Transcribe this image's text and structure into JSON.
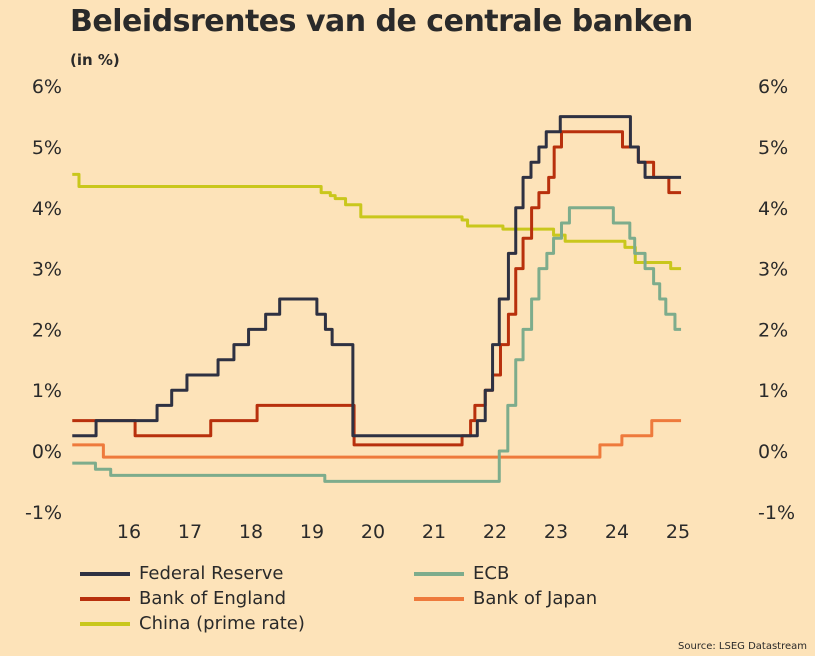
{
  "title": "Beleidsrentes van de centrale banken",
  "unit": "(in %)",
  "source": "Source: LSEG Datastream",
  "chart_data": {
    "type": "line",
    "title": "Beleidsrentes van de centrale banken",
    "ylabel": "(in %)",
    "ylim": [
      -1,
      6
    ],
    "xlim": [
      2015.57,
      2026.6
    ],
    "yticks": [
      {
        "v": 6,
        "label": "6%"
      },
      {
        "v": 5,
        "label": "5%"
      },
      {
        "v": 4,
        "label": "4%"
      },
      {
        "v": 3,
        "label": "3%"
      },
      {
        "v": 2,
        "label": "2%"
      },
      {
        "v": 1,
        "label": "1%"
      },
      {
        "v": 0,
        "label": "0%"
      },
      {
        "v": -1,
        "label": "-1%"
      }
    ],
    "xticks": [
      {
        "v": 2016.5,
        "label": "16"
      },
      {
        "v": 2017.5,
        "label": "17"
      },
      {
        "v": 2018.5,
        "label": "18"
      },
      {
        "v": 2019.5,
        "label": "19"
      },
      {
        "v": 2020.5,
        "label": "20"
      },
      {
        "v": 2021.5,
        "label": "21"
      },
      {
        "v": 2022.5,
        "label": "22"
      },
      {
        "v": 2023.5,
        "label": "23"
      },
      {
        "v": 2024.5,
        "label": "24"
      },
      {
        "v": 2025.5,
        "label": "25"
      }
    ],
    "end": 2025.55,
    "series": [
      {
        "name": "China (prime rate)",
        "color": "#c9c71c",
        "steps": [
          [
            2015.57,
            4.55
          ],
          [
            2015.68,
            4.35
          ],
          [
            2019.65,
            4.25
          ],
          [
            2019.8,
            4.2
          ],
          [
            2019.88,
            4.15
          ],
          [
            2020.05,
            4.05
          ],
          [
            2020.3,
            3.85
          ],
          [
            2021.96,
            3.8
          ],
          [
            2022.05,
            3.7
          ],
          [
            2022.63,
            3.65
          ],
          [
            2023.46,
            3.55
          ],
          [
            2023.65,
            3.45
          ],
          [
            2024.63,
            3.35
          ],
          [
            2024.8,
            3.1
          ],
          [
            2025.38,
            3.0
          ]
        ]
      },
      {
        "name": "Bank of Japan",
        "color": "#ee7a3c",
        "steps": [
          [
            2015.57,
            0.1
          ],
          [
            2016.08,
            -0.1
          ],
          [
            2024.22,
            0.1
          ],
          [
            2024.58,
            0.25
          ],
          [
            2025.07,
            0.5
          ]
        ]
      },
      {
        "name": "ECB",
        "color": "#7dac8c",
        "steps": [
          [
            2015.57,
            -0.2
          ],
          [
            2015.95,
            -0.3
          ],
          [
            2016.2,
            -0.4
          ],
          [
            2019.71,
            -0.5
          ],
          [
            2022.57,
            0
          ],
          [
            2022.71,
            0.75
          ],
          [
            2022.84,
            1.5
          ],
          [
            2022.96,
            2.0
          ],
          [
            2023.1,
            2.5
          ],
          [
            2023.22,
            3.0
          ],
          [
            2023.35,
            3.25
          ],
          [
            2023.46,
            3.5
          ],
          [
            2023.59,
            3.75
          ],
          [
            2023.72,
            4.0
          ],
          [
            2024.44,
            3.75
          ],
          [
            2024.71,
            3.5
          ],
          [
            2024.79,
            3.25
          ],
          [
            2024.96,
            3.0
          ],
          [
            2025.1,
            2.75
          ],
          [
            2025.2,
            2.5
          ],
          [
            2025.3,
            2.25
          ],
          [
            2025.45,
            2.0
          ]
        ]
      },
      {
        "name": "Bank of England",
        "color": "#b8300c",
        "steps": [
          [
            2015.57,
            0.5
          ],
          [
            2016.6,
            0.25
          ],
          [
            2017.84,
            0.5
          ],
          [
            2018.6,
            0.75
          ],
          [
            2020.19,
            0.1
          ],
          [
            2021.96,
            0.25
          ],
          [
            2022.1,
            0.5
          ],
          [
            2022.17,
            0.75
          ],
          [
            2022.34,
            1.0
          ],
          [
            2022.46,
            1.25
          ],
          [
            2022.59,
            1.75
          ],
          [
            2022.72,
            2.25
          ],
          [
            2022.84,
            3.0
          ],
          [
            2022.96,
            3.5
          ],
          [
            2023.1,
            4.0
          ],
          [
            2023.22,
            4.25
          ],
          [
            2023.38,
            4.5
          ],
          [
            2023.47,
            5.0
          ],
          [
            2023.59,
            5.25
          ],
          [
            2024.59,
            5.0
          ],
          [
            2024.85,
            4.75
          ],
          [
            2025.1,
            4.5
          ],
          [
            2025.35,
            4.25
          ]
        ]
      },
      {
        "name": "Federal Reserve",
        "color": "#2e3142",
        "steps": [
          [
            2015.57,
            0.25
          ],
          [
            2015.96,
            0.5
          ],
          [
            2016.96,
            0.75
          ],
          [
            2017.2,
            1.0
          ],
          [
            2017.45,
            1.25
          ],
          [
            2017.96,
            1.5
          ],
          [
            2018.22,
            1.75
          ],
          [
            2018.46,
            2.0
          ],
          [
            2018.74,
            2.25
          ],
          [
            2018.97,
            2.5
          ],
          [
            2019.58,
            2.25
          ],
          [
            2019.72,
            2.0
          ],
          [
            2019.83,
            1.75
          ],
          [
            2020.17,
            0.25
          ],
          [
            2022.21,
            0.5
          ],
          [
            2022.34,
            1.0
          ],
          [
            2022.46,
            1.75
          ],
          [
            2022.57,
            2.5
          ],
          [
            2022.72,
            3.25
          ],
          [
            2022.84,
            4.0
          ],
          [
            2022.96,
            4.5
          ],
          [
            2023.09,
            4.75
          ],
          [
            2023.22,
            5.0
          ],
          [
            2023.34,
            5.25
          ],
          [
            2023.57,
            5.5
          ],
          [
            2024.72,
            5.0
          ],
          [
            2024.85,
            4.75
          ],
          [
            2024.96,
            4.5
          ]
        ]
      }
    ],
    "legend": [
      {
        "name": "Federal Reserve",
        "color": "#2e3142"
      },
      {
        "name": "ECB",
        "color": "#7dac8c"
      },
      {
        "name": "Bank of England",
        "color": "#b8300c"
      },
      {
        "name": "Bank of Japan",
        "color": "#ee7a3c"
      },
      {
        "name": "China (prime rate)",
        "color": "#c9c71c"
      }
    ],
    "legend_position": "bottom-left"
  }
}
